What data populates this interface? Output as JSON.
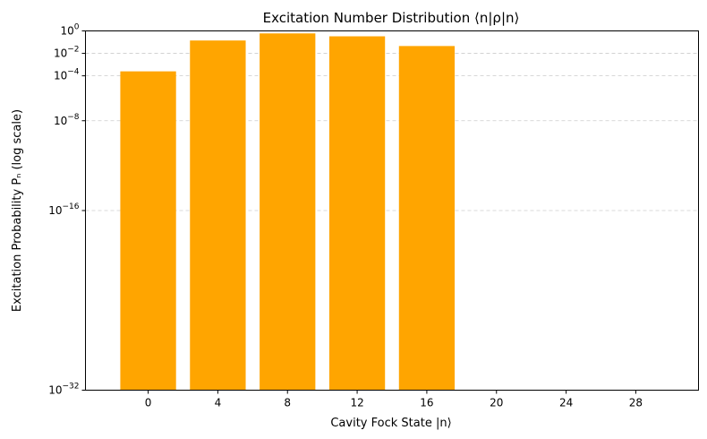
{
  "chart_data": {
    "type": "bar",
    "title": "Excitation Number Distribution ⟨n|ρ|n⟩",
    "xlabel": "Cavity Fock State |n⟩",
    "ylabel": "Excitation Probability Pₙ (log scale)",
    "bar_color": "#ffa500",
    "x_ticks": [
      0,
      4,
      8,
      12,
      16,
      20,
      24,
      28
    ],
    "xlim": [
      -3.6,
      31.6
    ],
    "y_scale": "log",
    "ylim": [
      1e-32,
      1
    ],
    "y_ticks": [
      {
        "base": "10",
        "exp": "−32",
        "value": 1e-32
      },
      {
        "base": "10",
        "exp": "−16",
        "value": 1e-16
      },
      {
        "base": "10",
        "exp": "−8",
        "value": 1e-08
      },
      {
        "base": "10",
        "exp": "−4",
        "value": 0.0001
      },
      {
        "base": "10",
        "exp": "−2",
        "value": 0.01
      },
      {
        "base": "10",
        "exp": "0",
        "value": 1
      }
    ],
    "grid": "horizontal-dashed",
    "bar_width": 3.2,
    "bars": [
      {
        "x": 0,
        "value": 0.00025
      },
      {
        "x": 4,
        "value": 0.14
      },
      {
        "x": 8,
        "value": 0.6
      },
      {
        "x": 12,
        "value": 0.33
      },
      {
        "x": 16,
        "value": 0.045
      }
    ]
  }
}
